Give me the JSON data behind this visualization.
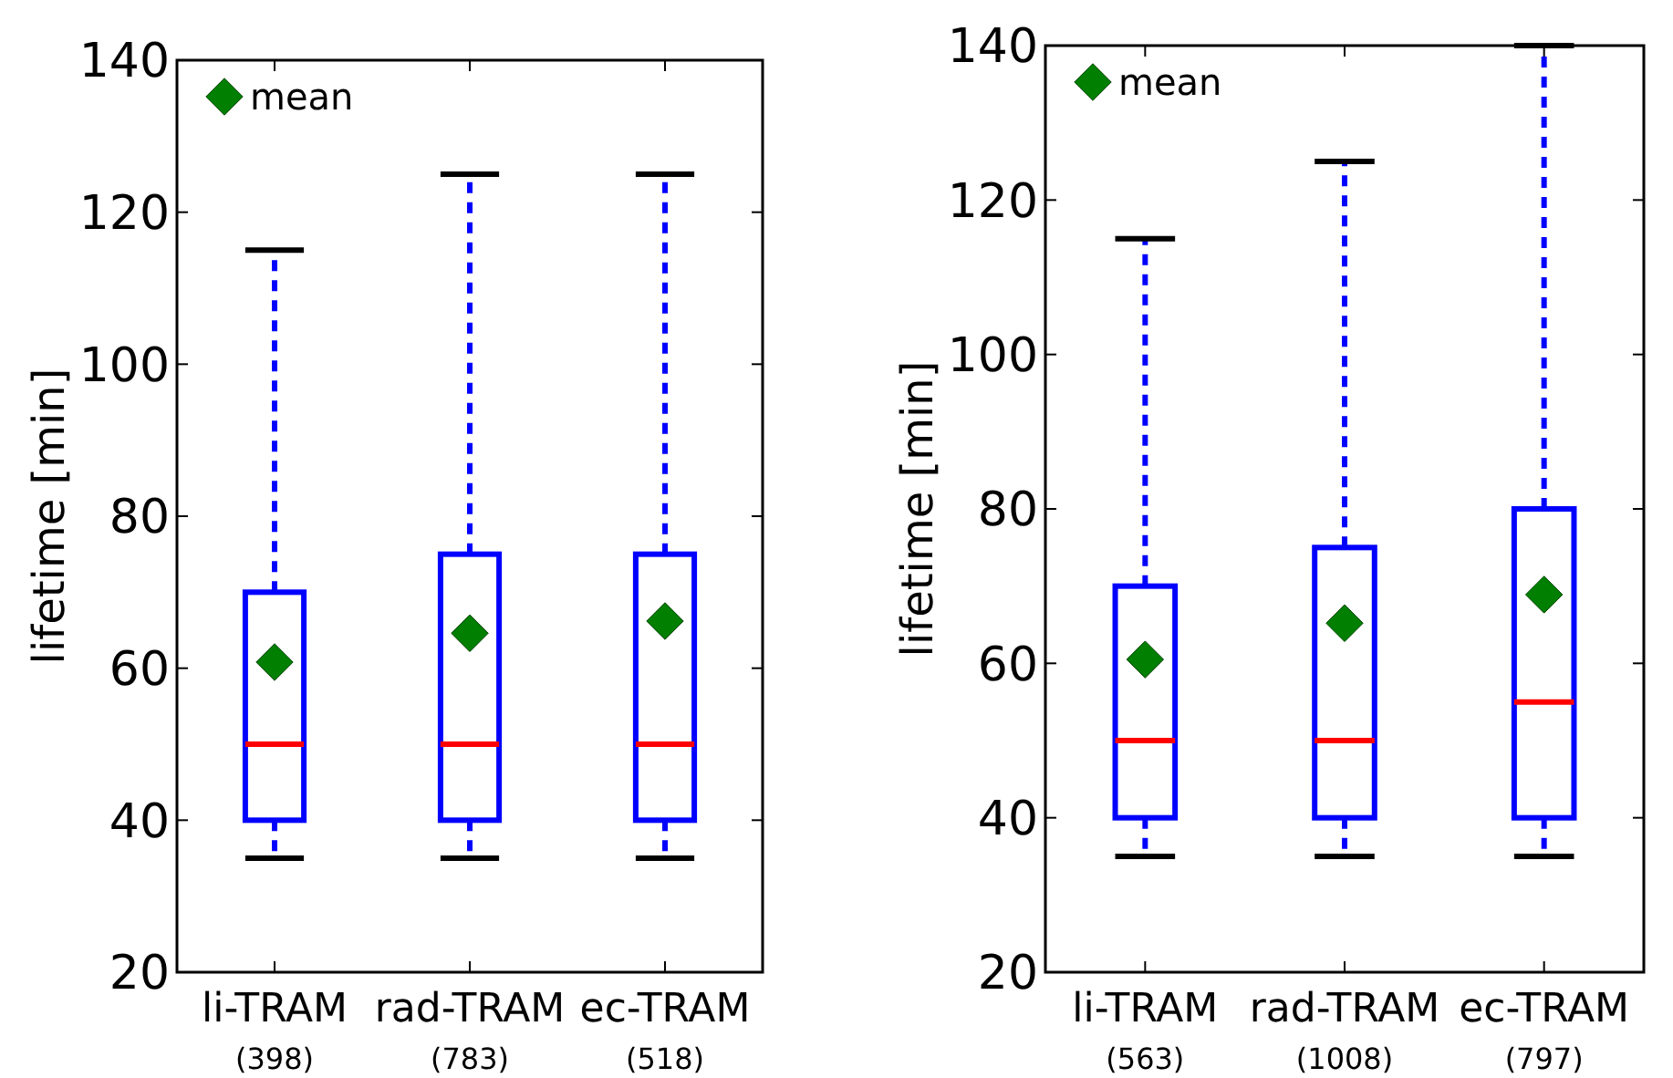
{
  "chart_data": [
    {
      "type": "box",
      "categories": [
        "li-TRAM\n(398)",
        "rad-TRAM\n(783)",
        "ec-TRAM\n(518)"
      ],
      "ylabel": "lifetime [min]",
      "ylim": [
        20,
        140
      ],
      "yticks": [
        20,
        40,
        60,
        80,
        100,
        120,
        140
      ],
      "legend": "top left",
      "grid": false,
      "series": [
        {
          "color": "#0000ff",
          "boxes": [
            {
              "low": 35,
              "q1": 40,
              "median": 50,
              "q3": 70,
              "high": 115
            },
            {
              "low": 35,
              "q1": 40,
              "median": 50,
              "q3": 75,
              "high": 125
            },
            {
              "low": 35,
              "q1": 40,
              "median": 50,
              "q3": 75,
              "high": 125
            }
          ]
        },
        {
          "type": "scatter",
          "name": "mean",
          "color": "#007f00",
          "marker": "diamond",
          "x": [
            "li-TRAM\n(398)",
            "rad-TRAM\n(783)",
            "ec-TRAM\n(518)"
          ],
          "values": [
            60.8,
            64.6,
            66.2
          ]
        }
      ]
    },
    {
      "type": "box",
      "categories": [
        "li-TRAM\n(563)",
        "rad-TRAM\n(1008)",
        "ec-TRAM\n(797)"
      ],
      "ylabel": "lifetime [min]",
      "ylim": [
        20,
        140
      ],
      "yticks": [
        20,
        40,
        60,
        80,
        100,
        120,
        140
      ],
      "legend": "top left",
      "grid": false,
      "series": [
        {
          "color": "#0000ff",
          "boxes": [
            {
              "low": 35,
              "q1": 40,
              "median": 50,
              "q3": 70,
              "high": 115
            },
            {
              "low": 35,
              "q1": 40,
              "median": 50,
              "q3": 75,
              "high": 125
            },
            {
              "low": 35,
              "q1": 40,
              "median": 55,
              "q3": 80,
              "high": 140
            }
          ]
        },
        {
          "type": "scatter",
          "name": "mean",
          "color": "#007f00",
          "marker": "diamond",
          "x": [
            "li-TRAM\n(563)",
            "rad-TRAM\n(1008)",
            "ec-TRAM\n(797)"
          ],
          "values": [
            60.5,
            65.2,
            68.9
          ]
        }
      ]
    }
  ]
}
